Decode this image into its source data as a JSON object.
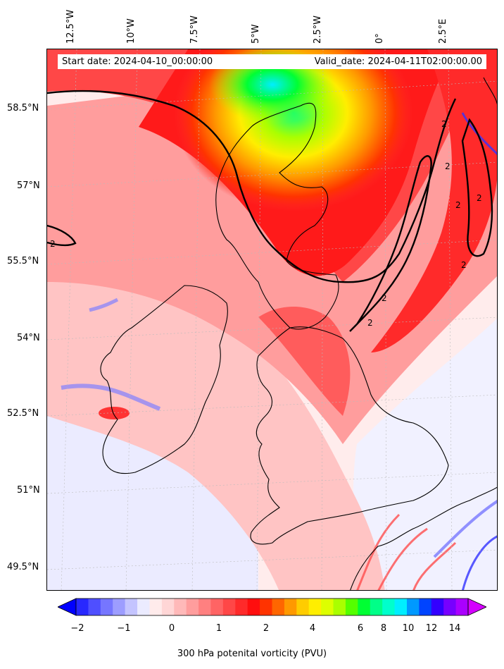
{
  "banner": {
    "start_date": "Start date: 2024-04-10_00:00:00",
    "valid_date": "Valid_date: 2024-04-11T02:00:00.00"
  },
  "longitude_labels": [
    "12.5°W",
    "10°W",
    "7.5°W",
    "5°W",
    "2.5°W",
    "0°",
    "2.5°E"
  ],
  "latitude_labels": [
    "58.5°N",
    "57°N",
    "55.5°N",
    "54°N",
    "52.5°N",
    "51°N",
    "49.5°N"
  ],
  "contour_labels": [
    "2",
    "2",
    "2",
    "2",
    "2",
    "2",
    "2",
    "2"
  ],
  "colorbar": {
    "title": "300 hPa potenital vorticity (PVU)",
    "tick_labels": [
      "−2",
      "−1",
      "0",
      "1",
      "2",
      "4",
      "6",
      "8",
      "10",
      "12",
      "14"
    ],
    "colors": [
      "#0000ff",
      "#2828ff",
      "#4f4fff",
      "#7676ff",
      "#9d9dff",
      "#c4c4ff",
      "#ebebff",
      "#ffebeb",
      "#ffd6d6",
      "#ffb9b9",
      "#ff9d9d",
      "#ff8080",
      "#ff6464",
      "#ff4747",
      "#ff2a2a",
      "#ff0e0e",
      "#ff3300",
      "#ff6600",
      "#ff9900",
      "#ffcc00",
      "#ffee00",
      "#ddff00",
      "#aaff00",
      "#55ff00",
      "#00ff33",
      "#00ff88",
      "#00ffcc",
      "#00eeff",
      "#0099ff",
      "#0044ff",
      "#3300ff",
      "#7700ff",
      "#aa00ff",
      "#d400ff"
    ]
  }
}
